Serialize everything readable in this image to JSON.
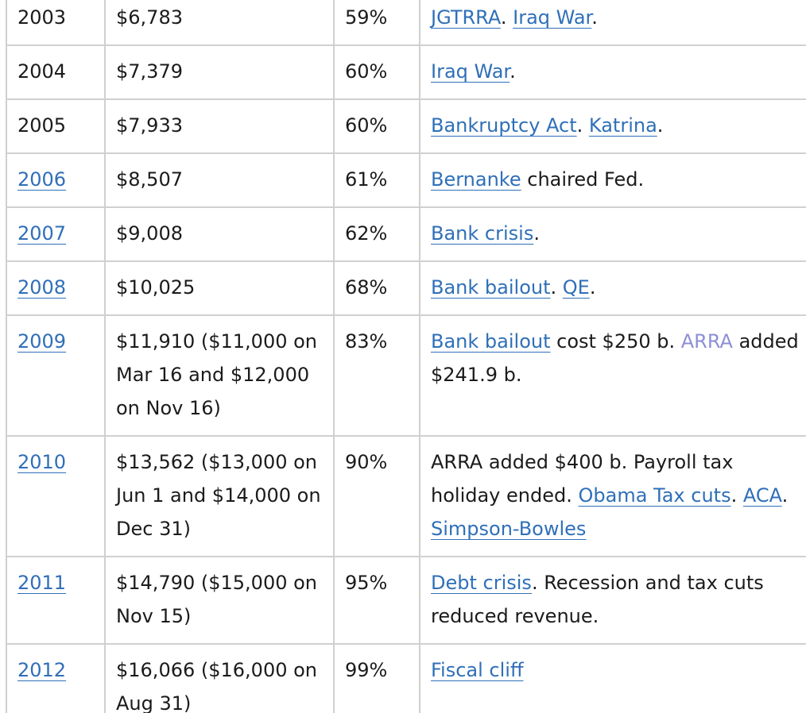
{
  "rows": [
    {
      "year": {
        "text": "2003",
        "link": false
      },
      "debt": "$6,783",
      "ratio": "59%",
      "events": [
        {
          "t": "JGTRRA",
          "link": true
        },
        {
          "t": ". ",
          "link": false
        },
        {
          "t": "Iraq War",
          "link": true
        },
        {
          "t": ".",
          "link": false
        }
      ]
    },
    {
      "year": {
        "text": "2004",
        "link": false
      },
      "debt": "$7,379",
      "ratio": "60%",
      "events": [
        {
          "t": "Iraq War",
          "link": true
        },
        {
          "t": ".",
          "link": false
        }
      ]
    },
    {
      "year": {
        "text": "2005",
        "link": false
      },
      "debt": "$7,933",
      "ratio": "60%",
      "events": [
        {
          "t": "Bankruptcy Act",
          "link": true
        },
        {
          "t": ". ",
          "link": false
        },
        {
          "t": "Katrina",
          "link": true
        },
        {
          "t": ".",
          "link": false
        }
      ]
    },
    {
      "year": {
        "text": "2006",
        "link": true
      },
      "debt": "$8,507",
      "ratio": "61%",
      "events": [
        {
          "t": "Bernanke",
          "link": true
        },
        {
          "t": " chaired Fed.",
          "link": false
        }
      ]
    },
    {
      "year": {
        "text": "2007",
        "link": true
      },
      "debt": "$9,008",
      "ratio": "62%",
      "events": [
        {
          "t": "Bank crisis",
          "link": true
        },
        {
          "t": ".",
          "link": false
        }
      ]
    },
    {
      "year": {
        "text": "2008",
        "link": true
      },
      "debt": "$10,025",
      "ratio": "68%",
      "events": [
        {
          "t": "Bank bailout",
          "link": true
        },
        {
          "t": ". ",
          "link": false
        },
        {
          "t": "QE",
          "link": true
        },
        {
          "t": ".",
          "link": false
        }
      ]
    },
    {
      "year": {
        "text": "2009",
        "link": true
      },
      "debt": "$11,910 ($11,000 on Mar 16 and $12,000 on Nov 16)",
      "ratio": "83%",
      "events": [
        {
          "t": "Bank bailout",
          "link": true
        },
        {
          "t": " cost $250 b. ",
          "link": false
        },
        {
          "t": "ARRA",
          "link": true,
          "visited": true
        },
        {
          "t": " added $241.9 b.",
          "link": false
        }
      ]
    },
    {
      "year": {
        "text": "2010",
        "link": true
      },
      "debt": "$13,562 ($13,000 on Jun 1 and $14,000 on Dec 31)",
      "ratio": "90%",
      "events": [
        {
          "t": "ARRA added $400 b. Payroll tax holiday ended. ",
          "link": false
        },
        {
          "t": "Obama Tax cuts",
          "link": true
        },
        {
          "t": ". ",
          "link": false
        },
        {
          "t": "ACA",
          "link": true
        },
        {
          "t": ". ",
          "link": false
        },
        {
          "t": "Simpson-Bowles",
          "link": true
        }
      ]
    },
    {
      "year": {
        "text": "2011",
        "link": true
      },
      "debt": "$14,790 ($15,000 on Nov 15)",
      "ratio": "95%",
      "events": [
        {
          "t": "Debt crisis",
          "link": true
        },
        {
          "t": ". Recession and tax cuts reduced revenue.",
          "link": false
        }
      ]
    },
    {
      "year": {
        "text": "2012",
        "link": true
      },
      "debt": "$16,066 ($16,000 on Aug 31)",
      "ratio": "99%",
      "events": [
        {
          "t": "Fiscal cliff",
          "link": true
        }
      ]
    }
  ]
}
